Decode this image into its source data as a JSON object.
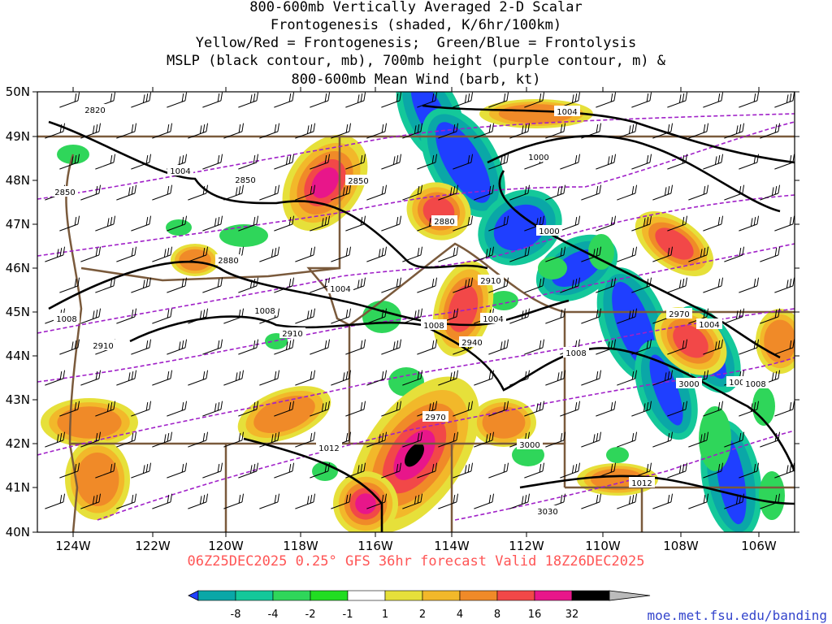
{
  "title": {
    "lines": [
      "800-600mb Vertically Averaged 2-D Scalar",
      "Frontogenesis (shaded, K/6hr/100km)",
      "Yellow/Red = Frontogenesis;  Green/Blue = Frontolysis",
      "MSLP (black contour, mb), 700mb height (purple contour, m) &",
      "800-600mb Mean Wind (barb, kt)"
    ]
  },
  "valid_line": "06Z25DEC2025 0.25° GFS 36hr forecast Valid 18Z26DEC2025",
  "credit": "moe.met.fsu.edu/banding",
  "latitude_labels": [
    "50N",
    "49N",
    "48N",
    "47N",
    "46N",
    "45N",
    "44N",
    "43N",
    "42N",
    "41N",
    "40N"
  ],
  "longitude_labels": [
    "124W",
    "122W",
    "120W",
    "118W",
    "116W",
    "114W",
    "112W",
    "110W",
    "108W",
    "106W"
  ],
  "mslp_labels": [
    "1004",
    "1004",
    "1000",
    "1000",
    "1004",
    "1004",
    "1008",
    "1008",
    "1008",
    "1004",
    "1004",
    "1008",
    "1008",
    "1012",
    "1012"
  ],
  "height_labels": [
    "2820",
    "2850",
    "2850",
    "2850",
    "2880",
    "2880",
    "2910",
    "2910",
    "2910",
    "2940",
    "2970",
    "2970",
    "3000",
    "3000",
    "3030"
  ],
  "colorbar": {
    "ticks": [
      "-8",
      "-4",
      "-2",
      "-1",
      "1",
      "2",
      "4",
      "8",
      "16",
      "32"
    ],
    "colors": [
      "#1f3fff",
      "#0aa7a7",
      "#14c89a",
      "#2fd65a",
      "#22dd22",
      "#ffffff",
      "#e6e03a",
      "#f2b82a",
      "#f08a28",
      "#f24848",
      "#e8168a",
      "#000000",
      "#bbbbbb"
    ]
  }
}
